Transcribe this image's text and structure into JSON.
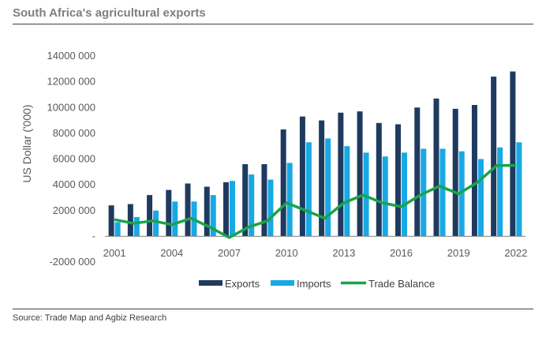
{
  "title": "South Africa's agricultural exports",
  "source": "Source: Trade Map and Agbiz Research",
  "chart_data": {
    "type": "bar",
    "ylabel": "US Dollar ('000)",
    "ylim": [
      -2000000,
      14000000
    ],
    "yticks": [
      -2000000,
      0,
      2000000,
      4000000,
      6000000,
      8000000,
      10000000,
      12000000,
      14000000
    ],
    "ytick_labels": [
      "-2000 000",
      "-",
      "2000 000",
      "4000 000",
      "6000 000",
      "8000 000",
      "10000 000",
      "12000 000",
      "14000 000"
    ],
    "categories": [
      "2001",
      "2002",
      "2003",
      "2004",
      "2005",
      "2006",
      "2007",
      "2008",
      "2009",
      "2010",
      "2011",
      "2012",
      "2013",
      "2014",
      "2015",
      "2016",
      "2017",
      "2018",
      "2019",
      "2020",
      "2021",
      "2022"
    ],
    "xtick_labels": [
      "2001",
      "2004",
      "2007",
      "2010",
      "2013",
      "2016",
      "2019",
      "2022"
    ],
    "series": [
      {
        "name": "Exports",
        "type": "bar",
        "color": "#1f3a5f",
        "values": [
          2400000,
          2500000,
          3200000,
          3600000,
          4100000,
          3850000,
          4200000,
          5600000,
          5600000,
          8300000,
          9300000,
          9000000,
          9600000,
          9700000,
          8800000,
          8700000,
          10000000,
          10700000,
          9900000,
          10200000,
          12400000,
          12800000
        ]
      },
      {
        "name": "Imports",
        "type": "bar",
        "color": "#18a9e5",
        "values": [
          1100000,
          1500000,
          2000000,
          2700000,
          2700000,
          3200000,
          4300000,
          4800000,
          4400000,
          5700000,
          7300000,
          7600000,
          7000000,
          6500000,
          6200000,
          6500000,
          6800000,
          6800000,
          6600000,
          6000000,
          6900000,
          7300000
        ]
      },
      {
        "name": "Trade Balance",
        "type": "line",
        "color": "#1aa34a",
        "values": [
          1300000,
          1000000,
          1200000,
          900000,
          1400000,
          700000,
          -100000,
          700000,
          1200000,
          2600000,
          2000000,
          1400000,
          2600000,
          3200000,
          2600000,
          2300000,
          3200000,
          3900000,
          3300000,
          4200000,
          5500000,
          5500000
        ]
      }
    ],
    "legend": "bottom",
    "grid": false
  }
}
